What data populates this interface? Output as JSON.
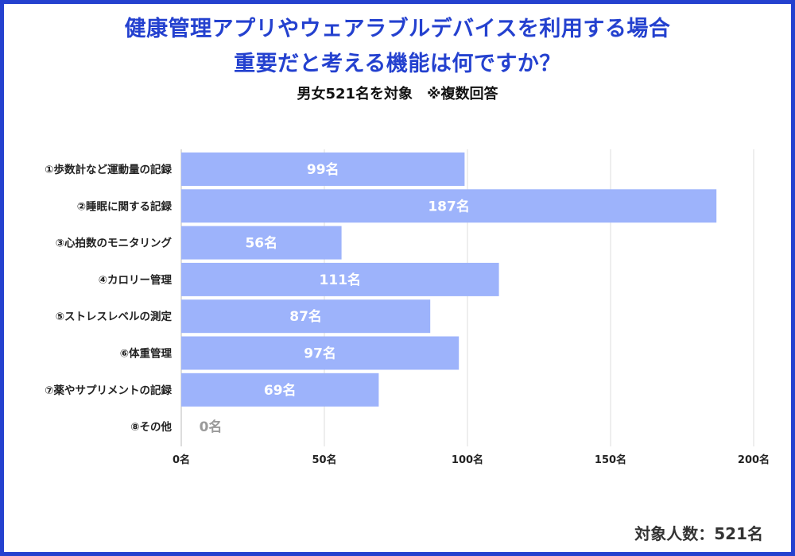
{
  "title_line1": "健康管理アプリやウェアラブルデバイスを利用する場合",
  "title_line2": "重要だと考える機能は何ですか？",
  "subtitle": "男女521名を対象　※複数回答",
  "footer": "対象人数：521名",
  "colors": {
    "accent": "#2441cf",
    "bar": "#9db3fb",
    "grid": "#dddddd"
  },
  "chart_data": {
    "type": "bar",
    "orientation": "horizontal",
    "unit": "名",
    "categories": [
      "①歩数計など運動量の記録",
      "②睡眠に関する記録",
      "③心拍数のモニタリング",
      "④カロリー管理",
      "⑤ストレスレベルの測定",
      "⑥体重管理",
      "⑦薬やサプリメントの記録",
      "⑧その他"
    ],
    "values": [
      99,
      187,
      56,
      111,
      87,
      97,
      69,
      0
    ],
    "data_labels": [
      "99名",
      "187名",
      "56名",
      "111名",
      "87名",
      "97名",
      "69名",
      "0名"
    ],
    "xlim": [
      0,
      200
    ],
    "ticks": [
      0,
      50,
      100,
      150,
      200
    ],
    "tick_labels": [
      "0名",
      "50名",
      "100名",
      "150名",
      "200名"
    ],
    "grid": true
  }
}
